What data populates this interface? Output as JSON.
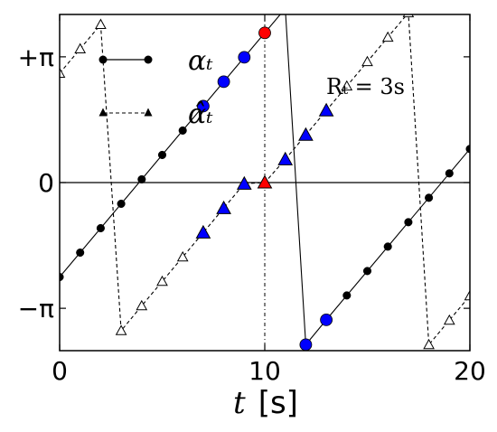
{
  "chart_data": {
    "type": "line",
    "xlabel": "t",
    "xlabel_unit": "[s]",
    "xlim": [
      0,
      20
    ],
    "ylim": [
      -4.2,
      4.2
    ],
    "x_ticks": [
      0,
      10,
      20
    ],
    "x_tick_labels": [
      "0",
      "10",
      "20"
    ],
    "y_ticks": [
      -3.14159,
      0,
      3.14159
    ],
    "y_tick_labels": [
      "−π",
      "0",
      "+π"
    ],
    "grid": false,
    "zero_line": true,
    "vertical_marker_x": 10,
    "annotation": "Rₜ = 3s",
    "legend": {
      "placement": "top-left",
      "entries": [
        {
          "label": "αₜ",
          "style": "solid",
          "marker": "circle"
        },
        {
          "label": "α̂ₜ",
          "style": "dashed",
          "marker": "triangle"
        }
      ]
    },
    "series": [
      {
        "label_ref": "αₜ",
        "style": "solid",
        "marker": "circle",
        "color": "#000000",
        "points": [
          {
            "x": 0,
            "y": -2.36,
            "fill": "#000000",
            "size": "small"
          },
          {
            "x": 1,
            "y": -1.75,
            "fill": "#000000",
            "size": "small"
          },
          {
            "x": 2,
            "y": -1.14,
            "fill": "#000000",
            "size": "small"
          },
          {
            "x": 3,
            "y": -0.53,
            "fill": "#000000",
            "size": "small"
          },
          {
            "x": 4,
            "y": 0.08,
            "fill": "#000000",
            "size": "small"
          },
          {
            "x": 5,
            "y": 0.69,
            "fill": "#000000",
            "size": "small"
          },
          {
            "x": 6,
            "y": 1.3,
            "fill": "#000000",
            "size": "small"
          },
          {
            "x": 7,
            "y": 1.91,
            "fill": "#0000ff",
            "size": "large"
          },
          {
            "x": 8,
            "y": 2.52,
            "fill": "#0000ff",
            "size": "large"
          },
          {
            "x": 9,
            "y": 3.13,
            "fill": "#0000ff",
            "size": "large"
          },
          {
            "x": 10,
            "y": 3.74,
            "fill": "#ff0000",
            "size": "large"
          },
          {
            "x": 11,
            "y": 4.35,
            "fill": "#0000ff",
            "size": "large"
          },
          {
            "x": 12,
            "y": -4.05,
            "fill": "#0000ff",
            "size": "large"
          },
          {
            "x": 13,
            "y": -3.43,
            "fill": "#0000ff",
            "size": "large"
          },
          {
            "x": 14,
            "y": -2.82,
            "fill": "#000000",
            "size": "small"
          },
          {
            "x": 15,
            "y": -2.21,
            "fill": "#000000",
            "size": "small"
          },
          {
            "x": 16,
            "y": -1.6,
            "fill": "#000000",
            "size": "small"
          },
          {
            "x": 17,
            "y": -0.99,
            "fill": "#000000",
            "size": "small"
          },
          {
            "x": 18,
            "y": -0.38,
            "fill": "#000000",
            "size": "small"
          },
          {
            "x": 19,
            "y": 0.23,
            "fill": "#000000",
            "size": "small"
          },
          {
            "x": 20,
            "y": 0.84,
            "fill": "#000000",
            "size": "small"
          }
        ]
      },
      {
        "label_ref": "α̂ₜ",
        "style": "dashed",
        "marker": "triangle",
        "color": "#000000",
        "points": [
          {
            "x": 0,
            "y": 2.73,
            "fill": "#ffffff",
            "size": "small"
          },
          {
            "x": 1,
            "y": 3.34,
            "fill": "#ffffff",
            "size": "small"
          },
          {
            "x": 2,
            "y": 3.95,
            "fill": "#ffffff",
            "size": "small"
          },
          {
            "x": 3,
            "y": -3.7,
            "fill": "#ffffff",
            "size": "small"
          },
          {
            "x": 4,
            "y": -3.08,
            "fill": "#ffffff",
            "size": "small"
          },
          {
            "x": 5,
            "y": -2.47,
            "fill": "#ffffff",
            "size": "small"
          },
          {
            "x": 6,
            "y": -1.86,
            "fill": "#ffffff",
            "size": "small"
          },
          {
            "x": 7,
            "y": -1.25,
            "fill": "#0000ff",
            "size": "large"
          },
          {
            "x": 8,
            "y": -0.64,
            "fill": "#0000ff",
            "size": "large"
          },
          {
            "x": 9,
            "y": -0.03,
            "fill": "#0000ff",
            "size": "large"
          },
          {
            "x": 10,
            "y": 0.0,
            "fill": "#ff0000",
            "size": "large"
          },
          {
            "x": 11,
            "y": 0.58,
            "fill": "#0000ff",
            "size": "large"
          },
          {
            "x": 12,
            "y": 1.19,
            "fill": "#0000ff",
            "size": "large"
          },
          {
            "x": 13,
            "y": 1.8,
            "fill": "#0000ff",
            "size": "large"
          },
          {
            "x": 14,
            "y": 2.41,
            "fill": "#ffffff",
            "size": "small"
          },
          {
            "x": 15,
            "y": 3.02,
            "fill": "#ffffff",
            "size": "small"
          },
          {
            "x": 16,
            "y": 3.63,
            "fill": "#ffffff",
            "size": "small"
          },
          {
            "x": 17,
            "y": 4.24,
            "fill": "#ffffff",
            "size": "small"
          },
          {
            "x": 18,
            "y": -4.05,
            "fill": "#ffffff",
            "size": "small"
          },
          {
            "x": 19,
            "y": -3.44,
            "fill": "#ffffff",
            "size": "small"
          },
          {
            "x": 20,
            "y": -2.83,
            "fill": "#ffffff",
            "size": "small"
          }
        ]
      }
    ]
  }
}
